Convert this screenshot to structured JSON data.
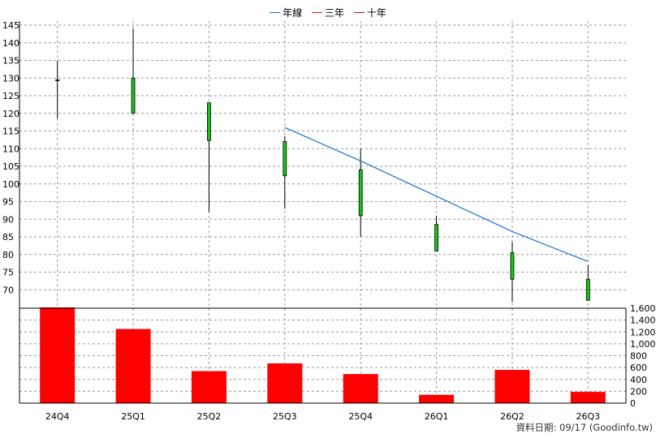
{
  "legend": [
    {
      "label": "年線",
      "color": "#1a6fd1"
    },
    {
      "label": "三年",
      "color": "#e0201b"
    },
    {
      "label": "十年",
      "color": "#a01b5a"
    }
  ],
  "footer": {
    "note": "資料日期: 09/17  (Goodinfo.tw)"
  },
  "chart_data": {
    "type": "candlestick_with_volume",
    "categories": [
      "24Q4",
      "25Q1",
      "25Q2",
      "25Q3",
      "25Q4",
      "26Q1",
      "26Q2",
      "26Q3"
    ],
    "price_axis": {
      "ylim": [
        65,
        145
      ],
      "ticks": [
        70,
        75,
        80,
        85,
        90,
        95,
        100,
        105,
        110,
        115,
        120,
        125,
        130,
        135,
        140,
        145
      ],
      "position": "left"
    },
    "volume_axis": {
      "ylim": [
        0,
        1600
      ],
      "ticks": [
        0,
        200,
        400,
        600,
        800,
        1000,
        1200,
        1400,
        1600
      ],
      "tick_labels": [
        "0",
        "200",
        "400",
        "600",
        "800",
        "1,000",
        "1,200",
        "1,400",
        "1,600"
      ],
      "position": "right"
    },
    "candles": [
      {
        "open": 129.5,
        "close": 129.3,
        "high": 134.8,
        "low": 118.5
      },
      {
        "open": 120.0,
        "close": 130.0,
        "high": 144.0,
        "low": 120.0
      },
      {
        "open": 112.3,
        "close": 123.0,
        "high": 123.0,
        "low": 92.0
      },
      {
        "open": 102.3,
        "close": 112.0,
        "high": 113.5,
        "low": 93.0
      },
      {
        "open": 91.0,
        "close": 104.0,
        "high": 110.0,
        "low": 85.0
      },
      {
        "open": 81.0,
        "close": 88.5,
        "high": 91.0,
        "low": 81.0
      },
      {
        "open": 73.0,
        "close": 80.5,
        "high": 83.5,
        "low": 66.5
      },
      {
        "open": 67.0,
        "close": 73.0,
        "high": 77.0,
        "low": 67.0
      }
    ],
    "candle_color": "#18c418",
    "series": [
      {
        "name": "年線",
        "color": "#1a6fd1",
        "points": [
          {
            "x": "25Q3",
            "y": 116.0
          },
          {
            "x": "25Q4",
            "y": 106.5
          },
          {
            "x": "26Q1",
            "y": 96.5
          },
          {
            "x": "26Q2",
            "y": 86.5
          },
          {
            "x": "26Q3",
            "y": 78.0
          }
        ]
      }
    ],
    "volume": {
      "color": "#ff0000",
      "values": [
        1620,
        1250,
        540,
        670,
        490,
        140,
        560,
        190
      ]
    },
    "grid": true
  }
}
